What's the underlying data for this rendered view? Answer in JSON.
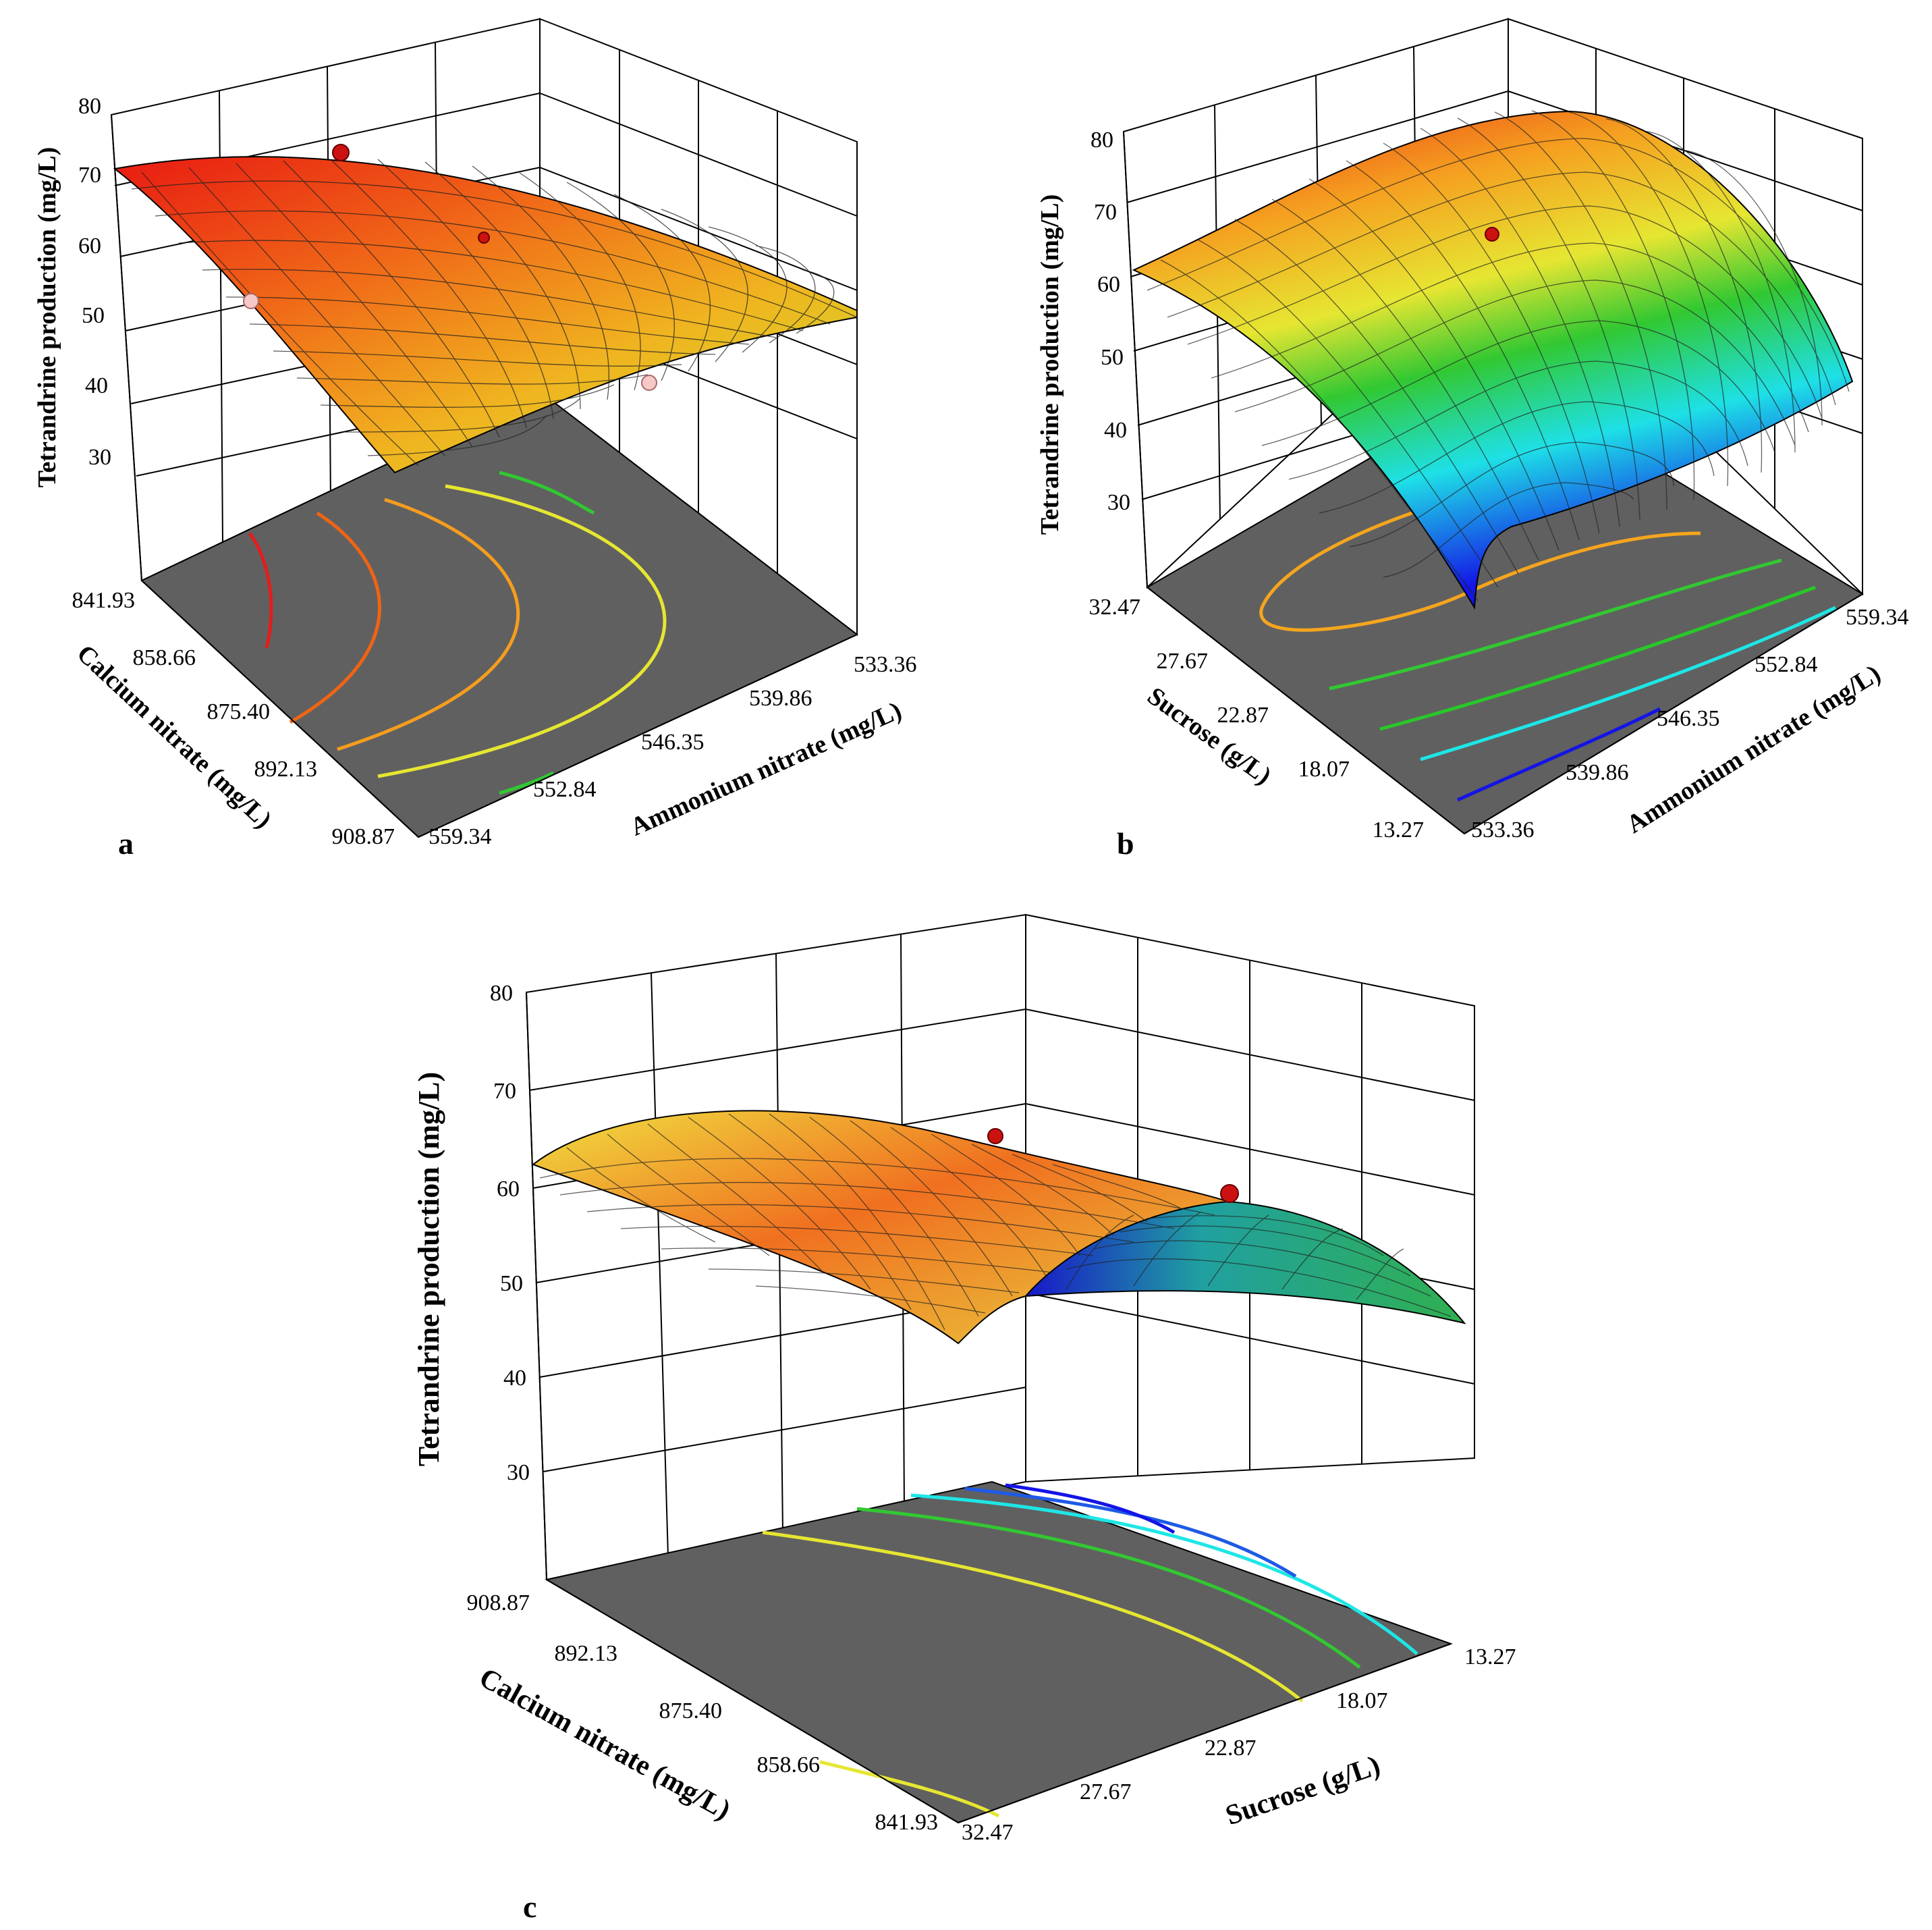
{
  "figure": {
    "description_labels": [
      "a",
      "b",
      "c"
    ]
  },
  "chart_data": [
    {
      "panel": "a",
      "type": "surface3d",
      "zlabel": "Tetrandrine production (mg/L)",
      "zticks": [
        "30",
        "40",
        "50",
        "60",
        "70",
        "80"
      ],
      "zlim": [
        30,
        80
      ],
      "factor1": {
        "label": "Calcium nitrate (mg/L)",
        "ticks": [
          "841.93",
          "858.66",
          "875.40",
          "892.13",
          "908.87"
        ]
      },
      "factor2": {
        "label": "Ammonium nitrate (mg/L)",
        "ticks": [
          "559.34",
          "552.84",
          "546.35",
          "539.86",
          "533.36"
        ]
      },
      "surface_corners_z": {
        "f1min_f2max": 71,
        "f1max_f2max": 45,
        "f1min_f2min": 62,
        "f1max_f2min": 48
      },
      "contour_colors": [
        "#e51c1c",
        "#f06414",
        "#f59d1e",
        "#e6e632",
        "#31c831"
      ],
      "points": [
        {
          "z": 74,
          "color": "#cc1111"
        },
        {
          "z": 62,
          "color": "#cc1111"
        },
        {
          "z": 53,
          "color": "#f6c8c8"
        },
        {
          "z": 44,
          "color": "#f6c8c8"
        }
      ],
      "panel_label": "a"
    },
    {
      "panel": "b",
      "type": "surface3d",
      "zlabel": "Tetrandrine production (mg/L)",
      "zticks": [
        "30",
        "40",
        "50",
        "60",
        "70",
        "80"
      ],
      "zlim": [
        30,
        80
      ],
      "factor1": {
        "label": "Sucrose (g/L)",
        "ticks": [
          "32.47",
          "27.67",
          "22.87",
          "18.07",
          "13.27"
        ]
      },
      "factor2": {
        "label": "Ammonium nitrate (mg/L)",
        "ticks": [
          "533.36",
          "539.86",
          "546.35",
          "552.84",
          "559.34"
        ]
      },
      "surface_corners_z": {
        "f1max_f2min": 61,
        "f1max_f2max": 78,
        "f1min_f2min": 21,
        "f1min_f2max": 43
      },
      "contour_colors": [
        "#f5a51e",
        "#32c832",
        "#28c828",
        "#1ee6e6",
        "#1414e6"
      ],
      "points": [
        {
          "z": 65,
          "color": "#cc1111"
        }
      ],
      "panel_label": "b"
    },
    {
      "panel": "c",
      "type": "surface3d",
      "zlabel": "Tetrandrine production (mg/L)",
      "zticks": [
        "30",
        "40",
        "50",
        "60",
        "70",
        "80"
      ],
      "zlim": [
        30,
        80
      ],
      "factor1": {
        "label": "Calcium nitrate (mg/L)",
        "ticks": [
          "908.87",
          "892.13",
          "875.40",
          "858.66",
          "841.93"
        ]
      },
      "factor2": {
        "label": "Sucrose (g/L)",
        "ticks": [
          "32.47",
          "27.67",
          "22.87",
          "18.07",
          "13.27"
        ]
      },
      "surface_corners_z": {
        "f1max_f2max": 61,
        "f1min_f2max": 54,
        "f1max_f2min": 47,
        "f1min_f2min": 48
      },
      "contour_colors": [
        "#e6e632",
        "#e6e632",
        "#32c832",
        "#1ee6e6",
        "#1414e6"
      ],
      "points": [
        {
          "z": 64,
          "color": "#cc1111"
        },
        {
          "z": 60,
          "color": "#cc1111"
        }
      ],
      "panel_label": "c"
    }
  ]
}
